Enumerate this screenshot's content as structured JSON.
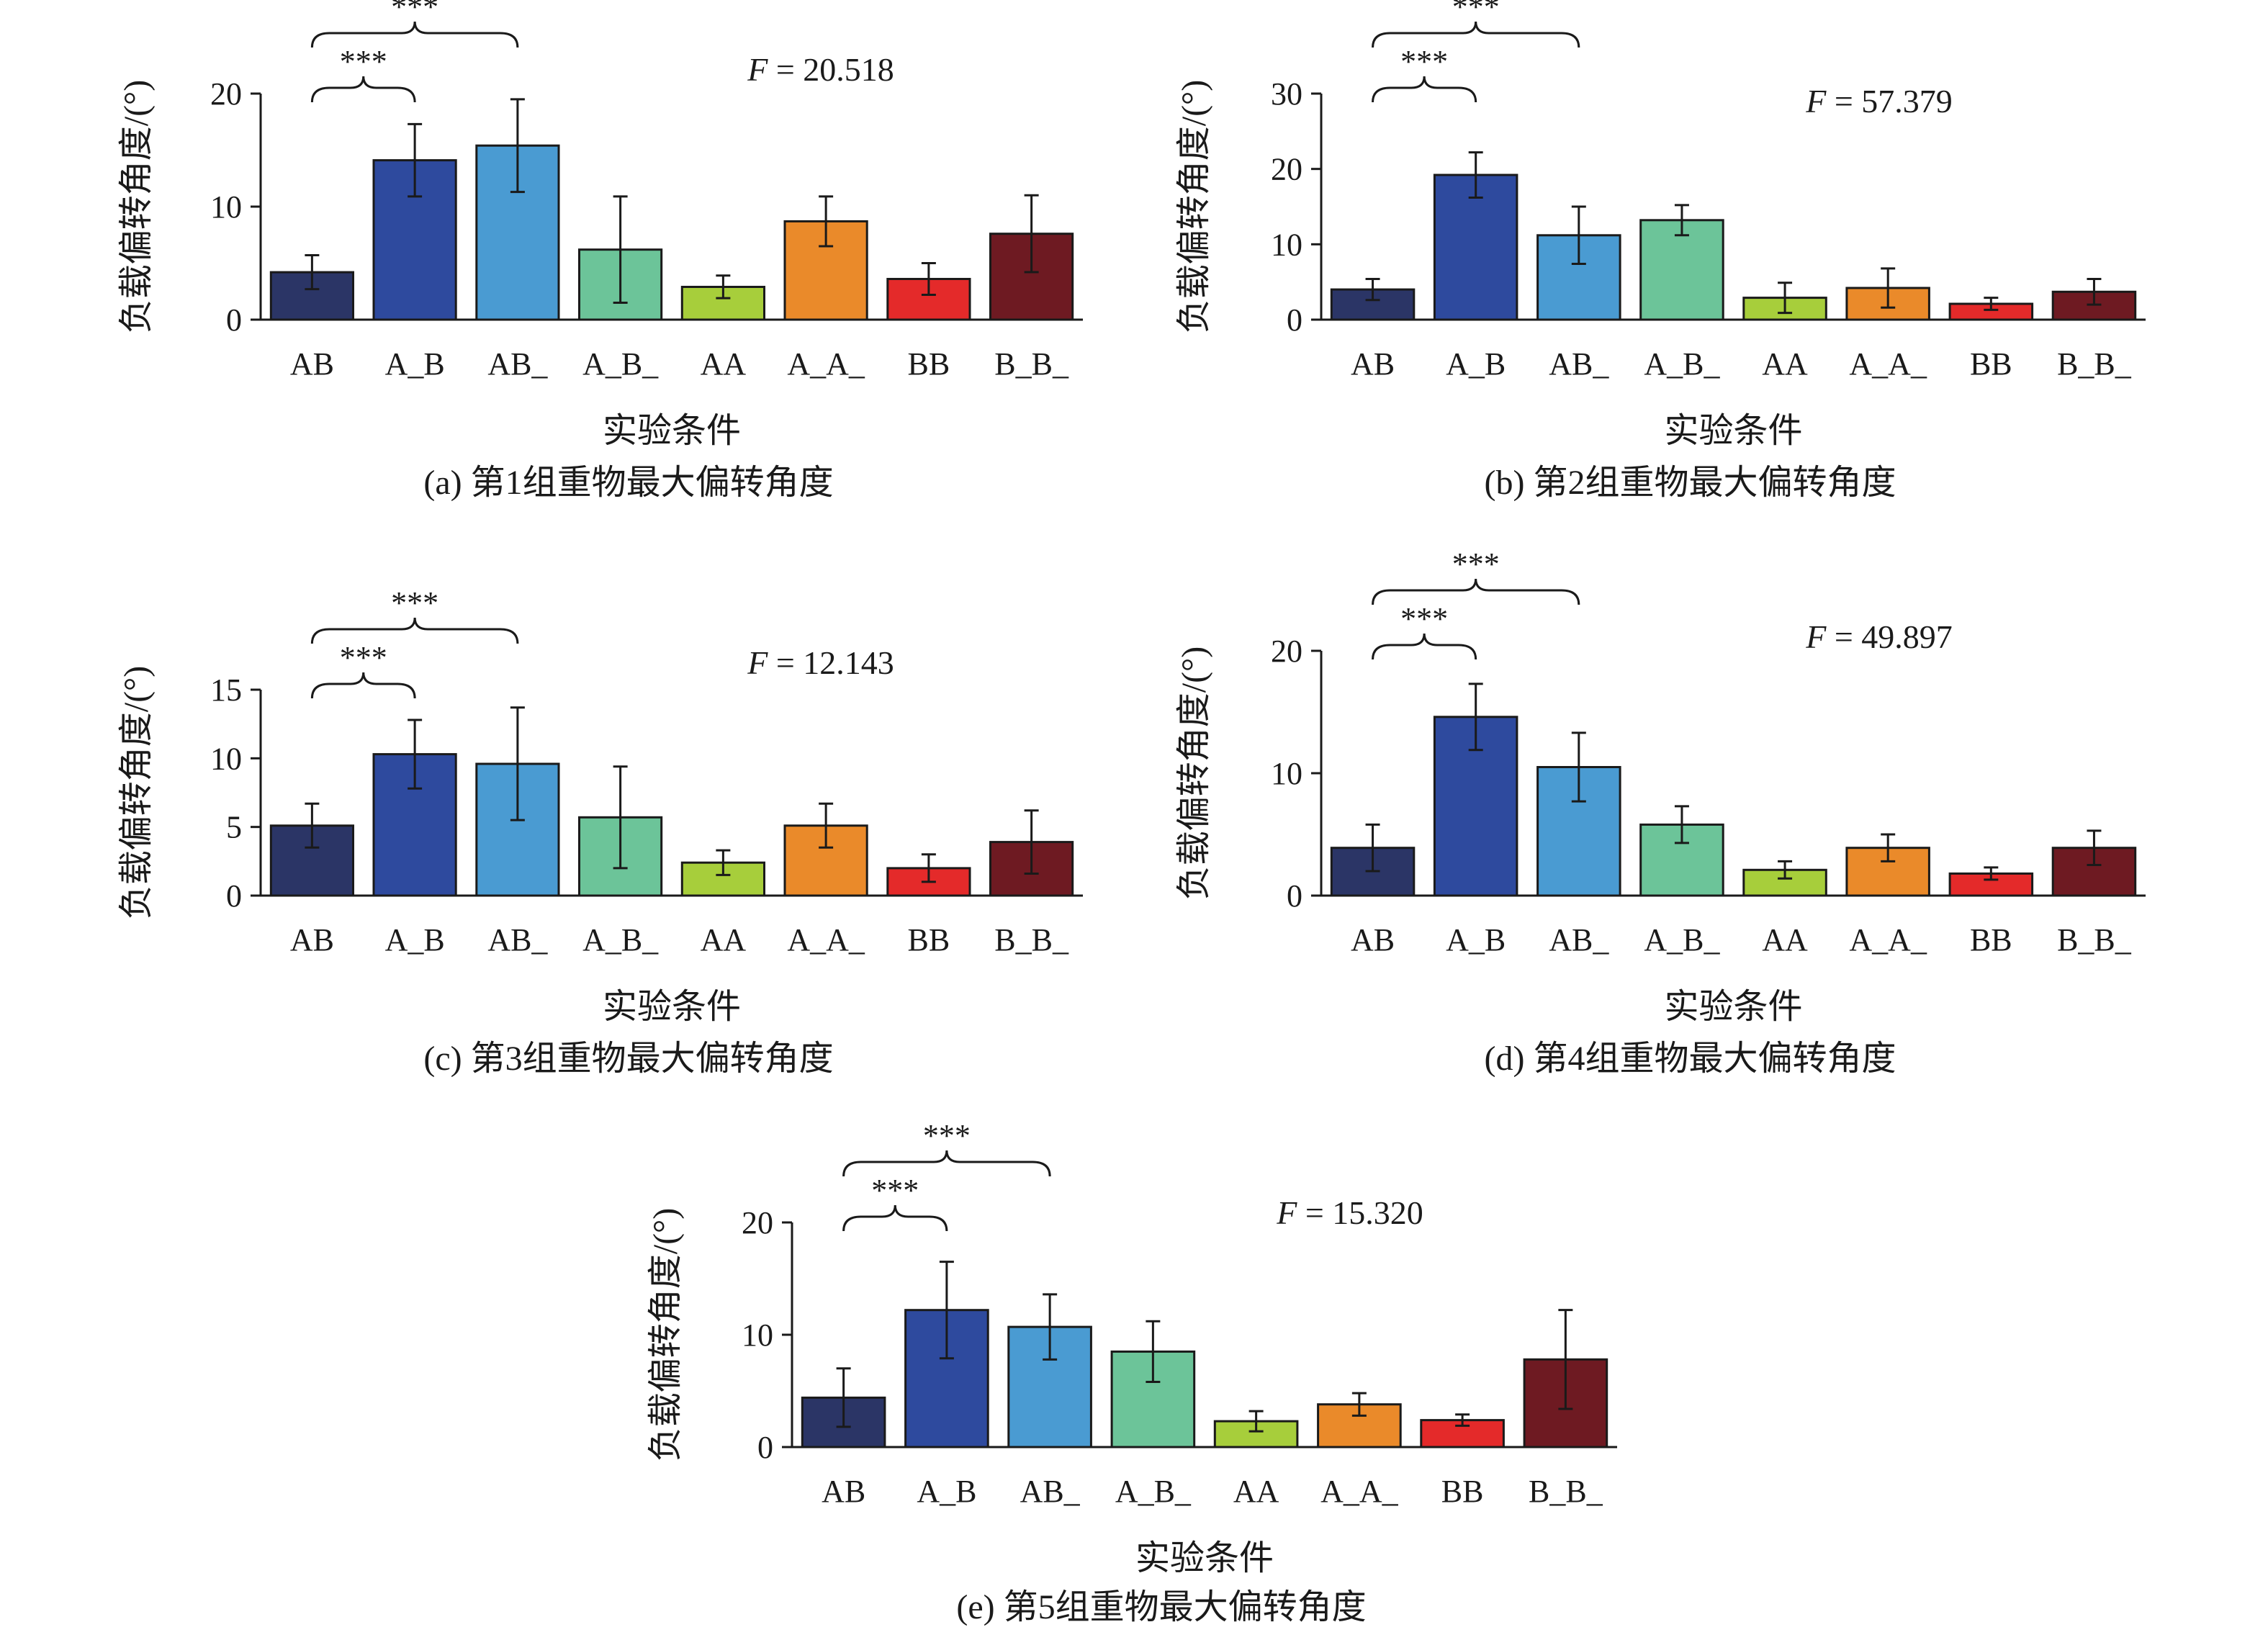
{
  "figure": {
    "colors": [
      "#2b3566",
      "#2e4a9e",
      "#4a9bd2",
      "#6cc499",
      "#a7ce3b",
      "#ea8a2a",
      "#e42a2a",
      "#6e1a22"
    ]
  },
  "chart_data": [
    {
      "type": "bar",
      "caption": "(a) 第1组重物最大偏转角度",
      "categories": [
        "AB",
        "A_B",
        "AB_",
        "A_B_",
        "AA",
        "A_A_",
        "BB",
        "B_B_"
      ],
      "values": [
        4.2,
        14.1,
        15.4,
        6.2,
        2.9,
        8.7,
        3.6,
        7.6
      ],
      "errors": [
        1.5,
        3.2,
        4.1,
        4.7,
        1.0,
        2.2,
        1.4,
        3.4
      ],
      "ylim": [
        0,
        20
      ],
      "yticks": [
        "0",
        "10",
        "20"
      ],
      "ylabel": "负载偏转角度/(°)",
      "xlabel": "实验条件",
      "f_prefix": "F",
      "f_value": "= 20.518",
      "significance": [
        {
          "from": 0,
          "to": 1,
          "label": "***"
        },
        {
          "from": 0,
          "to": 2,
          "label": "***"
        }
      ]
    },
    {
      "type": "bar",
      "caption": "(b) 第2组重物最大偏转角度",
      "categories": [
        "AB",
        "A_B",
        "AB_",
        "A_B_",
        "AA",
        "A_A_",
        "BB",
        "B_B_"
      ],
      "values": [
        4.0,
        19.2,
        11.2,
        13.2,
        2.9,
        4.2,
        2.1,
        3.7
      ],
      "errors": [
        1.4,
        3.0,
        3.8,
        2.0,
        2.0,
        2.6,
        0.8,
        1.7
      ],
      "ylim": [
        0,
        30
      ],
      "yticks": [
        "0",
        "10",
        "20",
        "30"
      ],
      "ylabel": "负载偏转角度/(°)",
      "xlabel": "实验条件",
      "f_prefix": "F",
      "f_value": "= 57.379",
      "significance": [
        {
          "from": 0,
          "to": 1,
          "label": "***"
        },
        {
          "from": 0,
          "to": 2,
          "label": "***"
        }
      ]
    },
    {
      "type": "bar",
      "caption": "(c) 第3组重物最大偏转角度",
      "categories": [
        "AB",
        "A_B",
        "AB_",
        "A_B_",
        "AA",
        "A_A_",
        "BB",
        "B_B_"
      ],
      "values": [
        5.1,
        10.3,
        9.6,
        5.7,
        2.4,
        5.1,
        2.0,
        3.9
      ],
      "errors": [
        1.6,
        2.5,
        4.1,
        3.7,
        0.9,
        1.6,
        1.0,
        2.3
      ],
      "ylim": [
        0,
        15
      ],
      "yticks": [
        "0",
        "5",
        "10",
        "15"
      ],
      "ylabel": "负载偏转角度/(°)",
      "xlabel": "实验条件",
      "f_prefix": "F",
      "f_value": "= 12.143",
      "significance": [
        {
          "from": 0,
          "to": 1,
          "label": "***"
        },
        {
          "from": 0,
          "to": 2,
          "label": "***"
        }
      ]
    },
    {
      "type": "bar",
      "caption": "(d) 第4组重物最大偏转角度",
      "categories": [
        "AB",
        "A_B",
        "AB_",
        "A_B_",
        "AA",
        "A_A_",
        "BB",
        "B_B_"
      ],
      "values": [
        3.9,
        14.6,
        10.5,
        5.8,
        2.1,
        3.9,
        1.8,
        3.9
      ],
      "errors": [
        1.9,
        2.7,
        2.8,
        1.5,
        0.7,
        1.1,
        0.5,
        1.4
      ],
      "ylim": [
        0,
        20
      ],
      "yticks": [
        "0",
        "10",
        "20"
      ],
      "ylabel": "负载偏转角度/(°)",
      "xlabel": "实验条件",
      "f_prefix": "F",
      "f_value": "= 49.897",
      "significance": [
        {
          "from": 0,
          "to": 1,
          "label": "***"
        },
        {
          "from": 0,
          "to": 2,
          "label": "***"
        }
      ]
    },
    {
      "type": "bar",
      "caption": "(e) 第5组重物最大偏转角度",
      "categories": [
        "AB",
        "A_B",
        "AB_",
        "A_B_",
        "AA",
        "A_A_",
        "BB",
        "B_B_"
      ],
      "values": [
        4.4,
        12.2,
        10.7,
        8.5,
        2.3,
        3.8,
        2.4,
        7.8
      ],
      "errors": [
        2.6,
        4.3,
        2.9,
        2.7,
        0.9,
        1.0,
        0.5,
        4.4
      ],
      "ylim": [
        0,
        20
      ],
      "yticks": [
        "0",
        "10",
        "20"
      ],
      "ylabel": "负载偏转角度/(°)",
      "xlabel": "实验条件",
      "f_prefix": "F",
      "f_value": "= 15.320",
      "significance": [
        {
          "from": 0,
          "to": 1,
          "label": "***"
        },
        {
          "from": 0,
          "to": 2,
          "label": "***"
        }
      ]
    }
  ]
}
